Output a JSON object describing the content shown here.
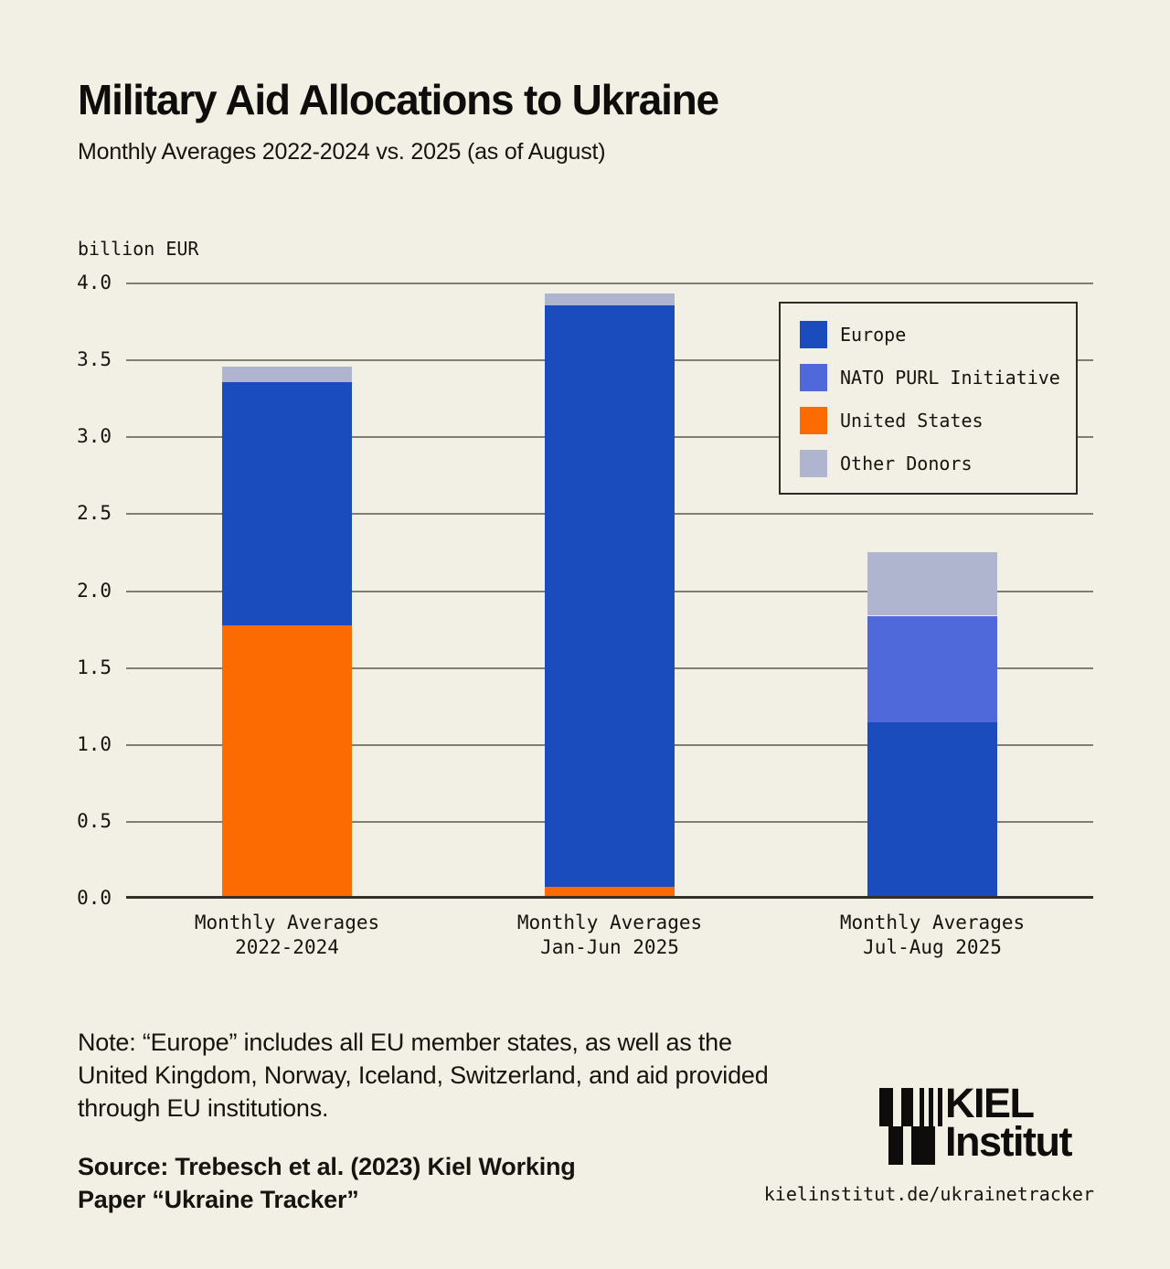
{
  "header": {
    "title": "Military Aid Allocations to Ukraine",
    "subtitle": "Monthly Averages 2022-2024 vs. 2025 (as of August)"
  },
  "chart_data": {
    "type": "bar",
    "stacked": true,
    "title": "Military Aid Allocations to Ukraine",
    "subtitle": "Monthly Averages 2022-2024 vs. 2025 (as of August)",
    "ylabel": "billion EUR",
    "xlabel": "",
    "ylim": [
      0,
      4.0
    ],
    "ytick_step": 0.5,
    "grid": true,
    "legend_position": "upper right",
    "categories": [
      [
        "Monthly Averages",
        "2022-2024"
      ],
      [
        "Monthly Averages",
        "Jan-Jun 2025"
      ],
      [
        "Monthly Averages",
        "Jul-Aug 2025"
      ]
    ],
    "series": [
      {
        "name": "Europe",
        "color": "#1b4cbd",
        "values": [
          1.58,
          3.78,
          1.15
        ]
      },
      {
        "name": "NATO PURL Initiative",
        "color": "#4f69da",
        "values": [
          0,
          0,
          0.69
        ]
      },
      {
        "name": "United States",
        "color": "#fc6a02",
        "values": [
          1.78,
          0.08,
          0
        ]
      },
      {
        "name": "Other Donors",
        "color": "#afb4cf",
        "values": [
          0.1,
          0.08,
          0.41
        ]
      }
    ],
    "stack_order": [
      "United States",
      "Europe",
      "NATO PURL Initiative",
      "Other Donors"
    ],
    "totals": [
      3.46,
      3.94,
      2.25
    ]
  },
  "footer": {
    "note_lines": [
      "Note: “Europe” includes all EU member states, as well as the",
      "United Kingdom, Norway, Iceland, Switzerland, and aid provided",
      "through EU institutions."
    ],
    "source_lines": [
      "Source: Trebesch et al. (2023) Kiel Working",
      "Paper “Ukraine Tracker”"
    ],
    "logo_line1": "KIEL",
    "logo_line2": "Institut",
    "url": "kielinstitut.de/ukrainetracker"
  },
  "colors": {
    "background": "#f2efe4",
    "text": "#15140f",
    "gridline": "#817d74",
    "axis_baseline": "#33302a",
    "europe": "#1b4cbd",
    "nato_purl": "#4f69da",
    "united_states": "#fc6a02",
    "other_donors": "#afb4cf",
    "legend_border": "#2b2a26"
  }
}
